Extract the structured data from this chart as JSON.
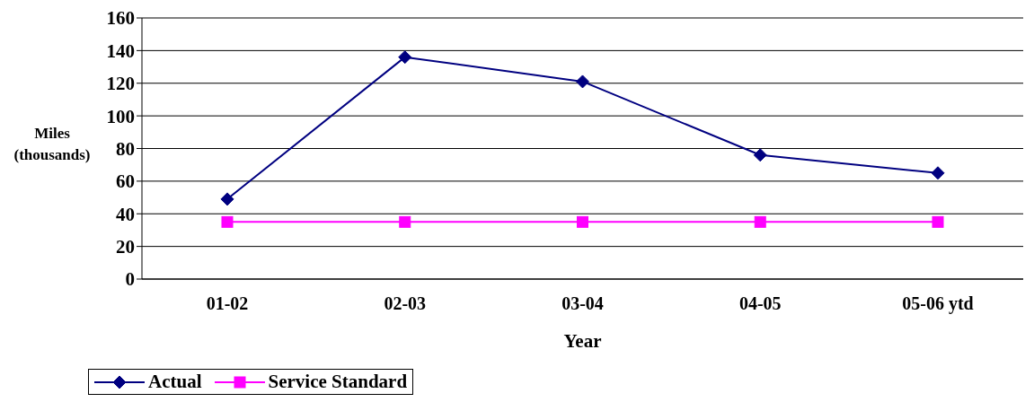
{
  "chart_data": {
    "type": "line",
    "xlabel": "Year",
    "ylabel": "Miles (thousands)",
    "categories": [
      "01-02",
      "02-03",
      "03-04",
      "04-05",
      "05-06 ytd"
    ],
    "series": [
      {
        "name": "Actual",
        "color": "#000080",
        "marker": "diamond",
        "values": [
          49,
          136,
          121,
          76,
          65
        ]
      },
      {
        "name": "Service Standard",
        "color": "#ff00ff",
        "marker": "square",
        "values": [
          35,
          35,
          35,
          35,
          35
        ]
      }
    ],
    "ylim": [
      0,
      160
    ],
    "yticks": [
      0,
      20,
      40,
      60,
      80,
      100,
      120,
      140,
      160
    ],
    "grid": "y",
    "legend": "bottom left"
  }
}
